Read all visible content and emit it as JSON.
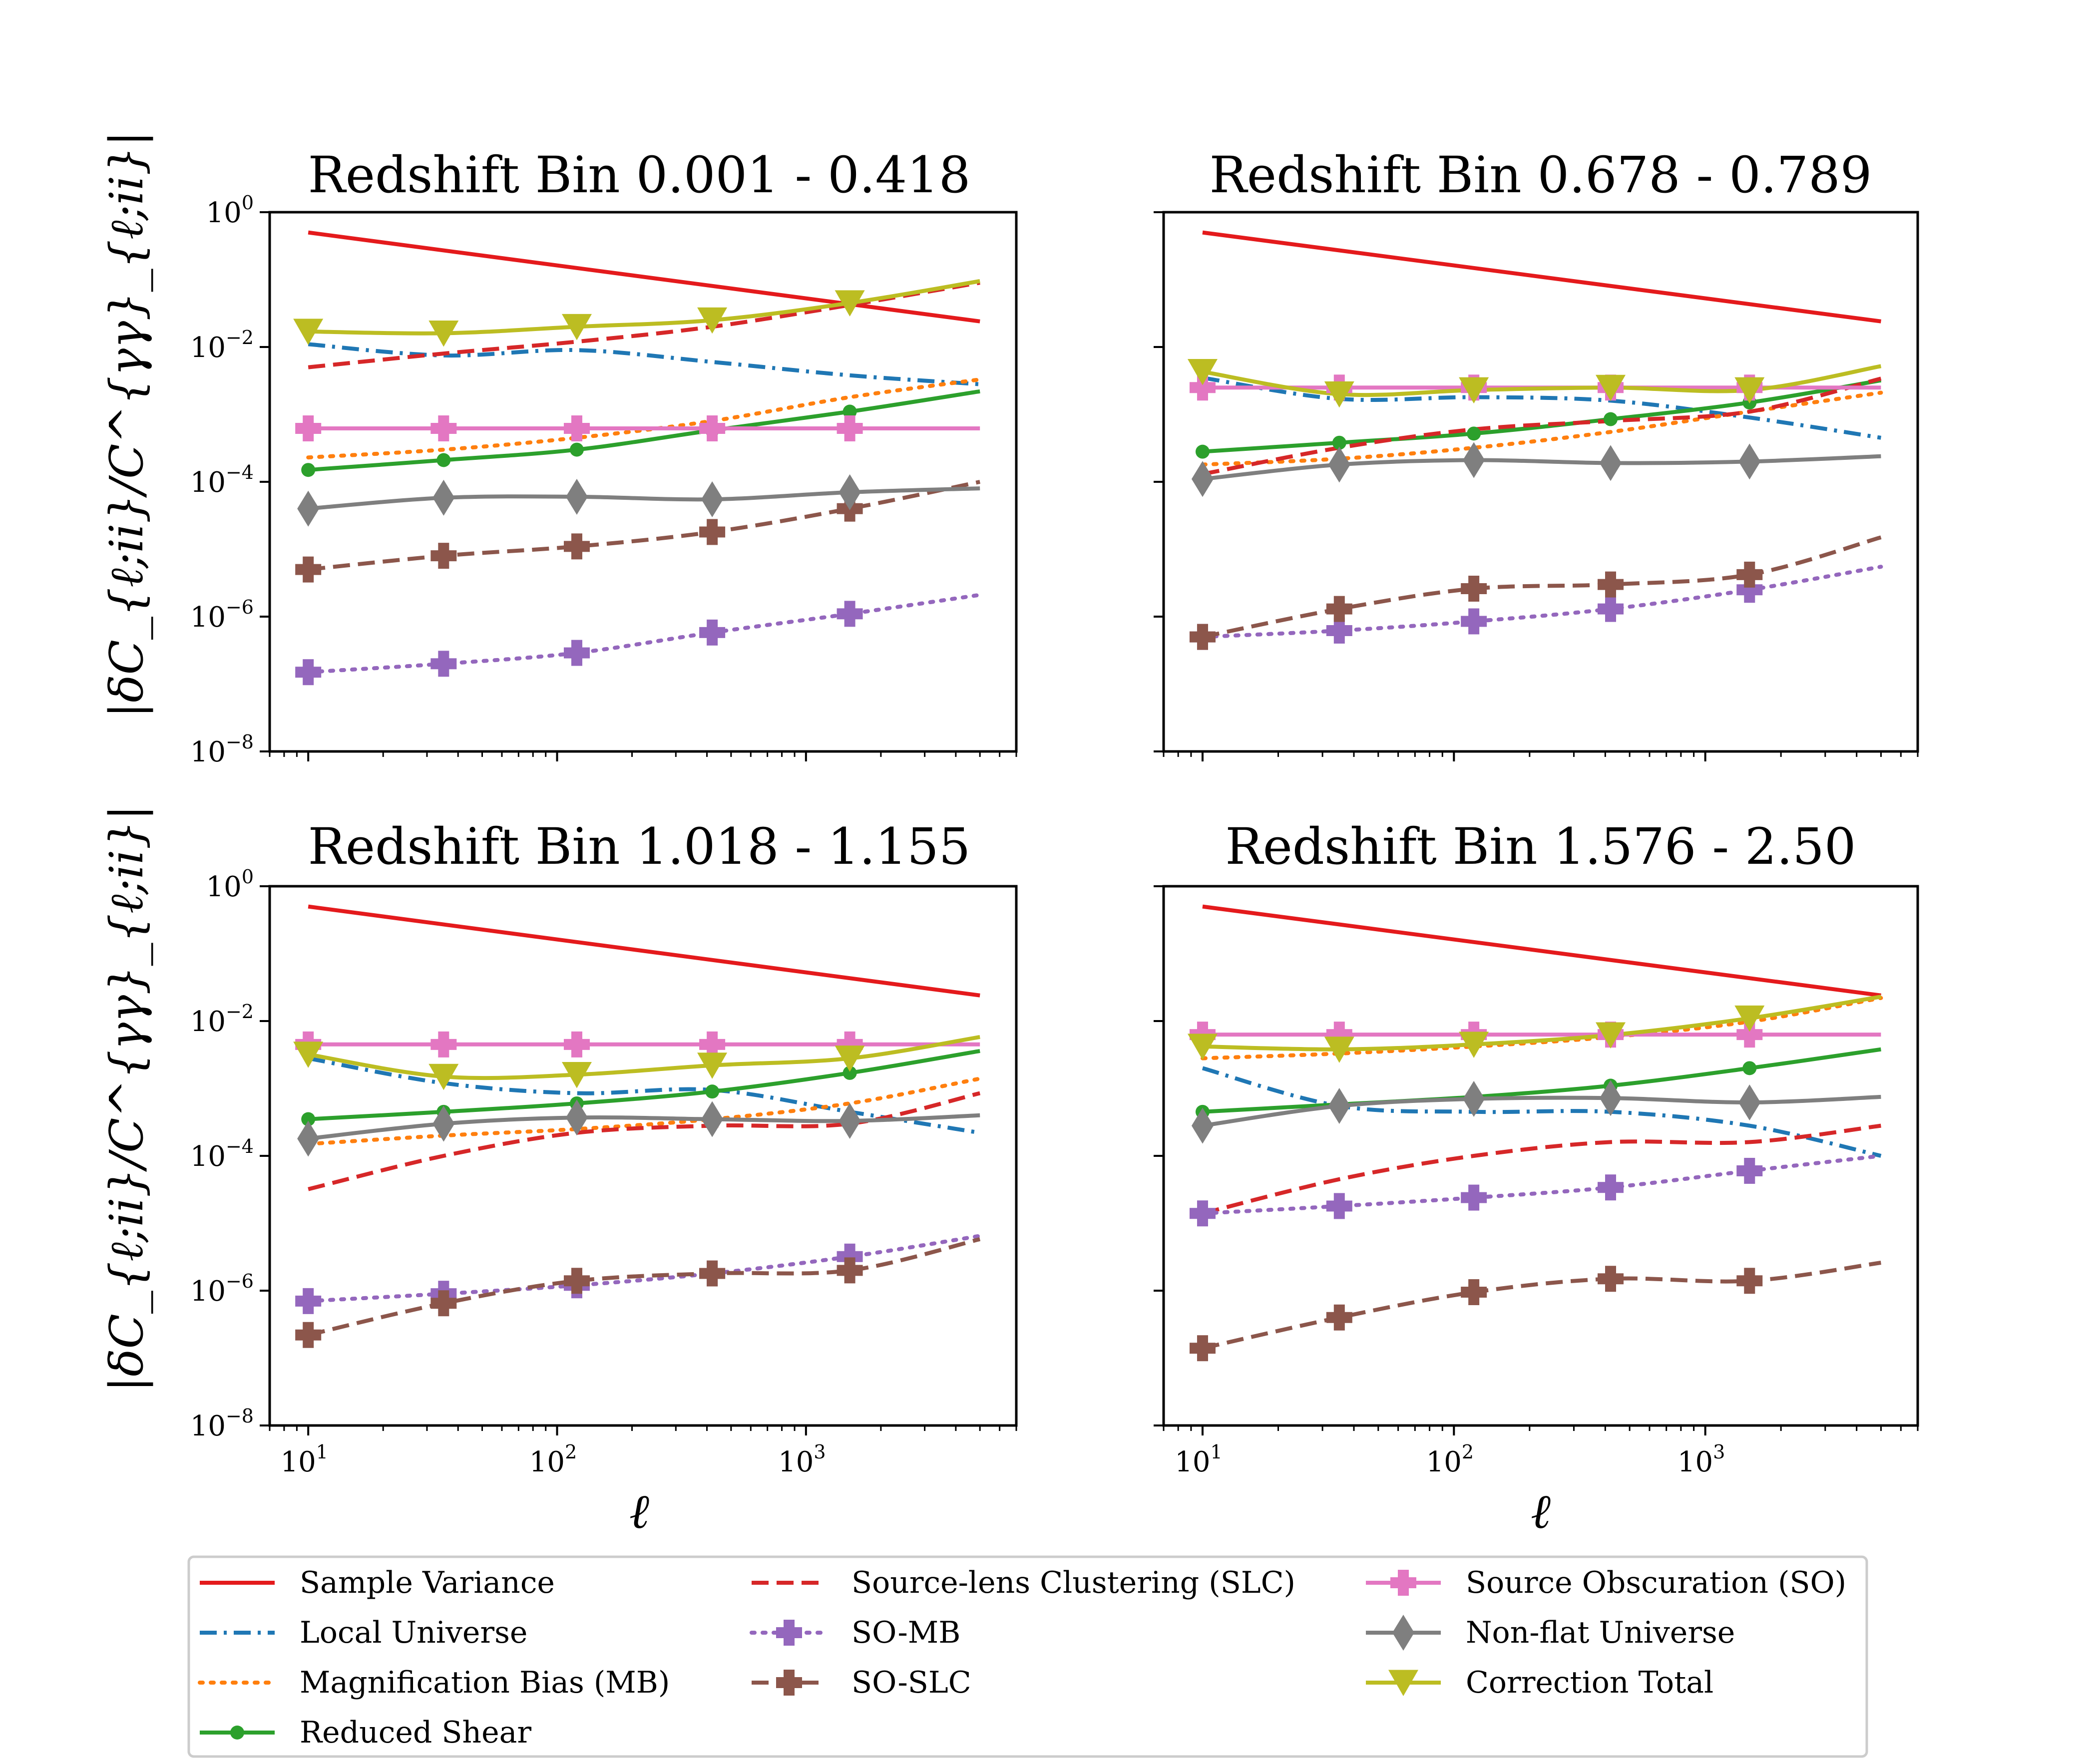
{
  "chart_data": {
    "type": "line",
    "ylabel": "|δC_{ℓ;ii}/C^{γγ}_{ℓ;ii}|",
    "xlabel": "ℓ",
    "xscale": "log",
    "yscale": "log",
    "xlim": [
      7,
      7000
    ],
    "ylim": [
      1e-08,
      1
    ],
    "x_ticks": [
      10,
      100,
      1000
    ],
    "y_ticks": [
      1e-08,
      1e-06,
      0.0001,
      0.01,
      1
    ],
    "x": [
      10,
      35,
      120,
      420,
      1500,
      5000
    ],
    "legend_position": "below",
    "legend": [
      {
        "key": "sv",
        "name": "Sample Variance",
        "color": "#e41a1c",
        "dash": "",
        "marker": ""
      },
      {
        "key": "lu",
        "name": "Local Universe",
        "color": "#1f77b4",
        "dash": "dashdot",
        "marker": ""
      },
      {
        "key": "mb",
        "name": "Magnification Bias (MB)",
        "color": "#ff7f0e",
        "dash": "dotted",
        "marker": ""
      },
      {
        "key": "rs",
        "name": "Reduced Shear",
        "color": "#2ca02c",
        "dash": "",
        "marker": "circle"
      },
      {
        "key": "slc",
        "name": "Source-lens Clustering (SLC)",
        "color": "#d62728",
        "dash": "dashed",
        "marker": ""
      },
      {
        "key": "somb",
        "name": "SO-MB",
        "color": "#9467bd",
        "dash": "dotted",
        "marker": "plus"
      },
      {
        "key": "soslc",
        "name": "SO-SLC",
        "color": "#8c564b",
        "dash": "dashed",
        "marker": "plus"
      },
      {
        "key": "so",
        "name": "Source Obscuration (SO)",
        "color": "#e377c2",
        "dash": "",
        "marker": "plus"
      },
      {
        "key": "nf",
        "name": "Non-flat Universe",
        "color": "#7f7f7f",
        "dash": "",
        "marker": "diamond"
      },
      {
        "key": "ct",
        "name": "Correction Total",
        "color": "#bcbd22",
        "dash": "",
        "marker": "triangle"
      }
    ],
    "panels": [
      {
        "title": "Redshift Bin 0.001 - 0.418",
        "series": {
          "sv": [
            0.5,
            0.28,
            0.15,
            0.082,
            0.044,
            0.024
          ],
          "lu": [
            0.011,
            0.0075,
            0.009,
            0.006,
            0.0038,
            0.0028
          ],
          "mb": [
            0.00023,
            0.0003,
            0.00045,
            0.0008,
            0.0018,
            0.0033
          ],
          "rs": [
            0.00015,
            0.00021,
            0.0003,
            0.00058,
            0.0011,
            0.0022
          ],
          "slc": [
            0.005,
            0.008,
            0.012,
            0.02,
            0.042,
            0.09
          ],
          "somb": [
            1.5e-07,
            2e-07,
            2.9e-07,
            5.8e-07,
            1.1e-06,
            2.1e-06
          ],
          "soslc": [
            5e-06,
            8e-06,
            1.1e-05,
            1.8e-05,
            4e-05,
            0.0001
          ],
          "so": [
            0.00062,
            0.00062,
            0.00062,
            0.00062,
            0.00062,
            0.00062
          ],
          "nf": [
            4e-05,
            5.8e-05,
            6e-05,
            5.5e-05,
            7e-05,
            8e-05
          ],
          "ct": [
            0.017,
            0.016,
            0.02,
            0.025,
            0.045,
            0.095
          ]
        }
      },
      {
        "title": "Redshift Bin 0.678 - 0.789",
        "series": {
          "sv": [
            0.5,
            0.28,
            0.15,
            0.082,
            0.044,
            0.024
          ],
          "lu": [
            0.0035,
            0.0017,
            0.0018,
            0.0016,
            0.0009,
            0.00045
          ],
          "mb": [
            0.00018,
            0.00022,
            0.00032,
            0.00055,
            0.0011,
            0.0021
          ],
          "rs": [
            0.00028,
            0.00038,
            0.00052,
            0.00085,
            0.0015,
            0.0032
          ],
          "slc": [
            0.00013,
            0.00032,
            0.0006,
            0.0008,
            0.0011,
            0.0034
          ],
          "somb": [
            5e-07,
            6.2e-07,
            8.5e-07,
            1.3e-06,
            2.5e-06,
            5.5e-06
          ],
          "soslc": [
            5e-07,
            1.3e-06,
            2.6e-06,
            3e-06,
            4.2e-06,
            1.5e-05
          ],
          "so": [
            0.0025,
            0.0025,
            0.0025,
            0.0025,
            0.0025,
            0.0025
          ],
          "nf": [
            0.00011,
            0.00018,
            0.00021,
            0.00019,
            0.0002,
            0.00024
          ],
          "ct": [
            0.0043,
            0.002,
            0.0023,
            0.0025,
            0.0023,
            0.0052
          ]
        }
      },
      {
        "title": "Redshift Bin 1.018 - 1.155",
        "series": {
          "sv": [
            0.5,
            0.28,
            0.15,
            0.082,
            0.044,
            0.024
          ],
          "lu": [
            0.0028,
            0.0012,
            0.00085,
            0.00095,
            0.00045,
            0.00022
          ],
          "mb": [
            0.00015,
            0.0002,
            0.00025,
            0.00035,
            0.0006,
            0.0014
          ],
          "rs": [
            0.00035,
            0.00045,
            0.0006,
            0.0009,
            0.0017,
            0.0036
          ],
          "slc": [
            3.2e-05,
            0.0001,
            0.00022,
            0.00028,
            0.0003,
            0.00085
          ],
          "somb": [
            7e-07,
            9e-07,
            1.2e-06,
            1.8e-06,
            3.2e-06,
            6.5e-06
          ],
          "soslc": [
            2.2e-07,
            6.5e-07,
            1.4e-06,
            1.8e-06,
            2e-06,
            5.8e-06
          ],
          "so": [
            0.0045,
            0.0045,
            0.0045,
            0.0045,
            0.0045,
            0.0045
          ],
          "nf": [
            0.00018,
            0.0003,
            0.00037,
            0.00035,
            0.00033,
            0.0004
          ],
          "ct": [
            0.0032,
            0.0015,
            0.0016,
            0.0022,
            0.0028,
            0.0058
          ]
        }
      },
      {
        "title": "Redshift Bin 1.576 - 2.50",
        "series": {
          "sv": [
            0.5,
            0.28,
            0.15,
            0.082,
            0.044,
            0.024
          ],
          "lu": [
            0.002,
            0.00055,
            0.00045,
            0.00045,
            0.00028,
            0.0001
          ],
          "mb": [
            0.0028,
            0.0033,
            0.0042,
            0.0058,
            0.0098,
            0.022
          ],
          "rs": [
            0.00045,
            0.00058,
            0.00075,
            0.0011,
            0.002,
            0.0038
          ],
          "slc": [
            1.4e-05,
            4.5e-05,
            0.0001,
            0.00016,
            0.00016,
            0.00028
          ],
          "somb": [
            1.4e-05,
            1.8e-05,
            2.4e-05,
            3.4e-05,
            6e-05,
            0.0001
          ],
          "soslc": [
            1.4e-07,
            4e-07,
            9.5e-07,
            1.5e-06,
            1.4e-06,
            2.6e-06
          ],
          "so": [
            0.0063,
            0.0063,
            0.0063,
            0.0063,
            0.0063,
            0.0063
          ],
          "nf": [
            0.00028,
            0.00055,
            0.0007,
            0.00072,
            0.00062,
            0.00075
          ],
          "ct": [
            0.0042,
            0.0038,
            0.0045,
            0.0062,
            0.011,
            0.023
          ]
        }
      }
    ]
  }
}
